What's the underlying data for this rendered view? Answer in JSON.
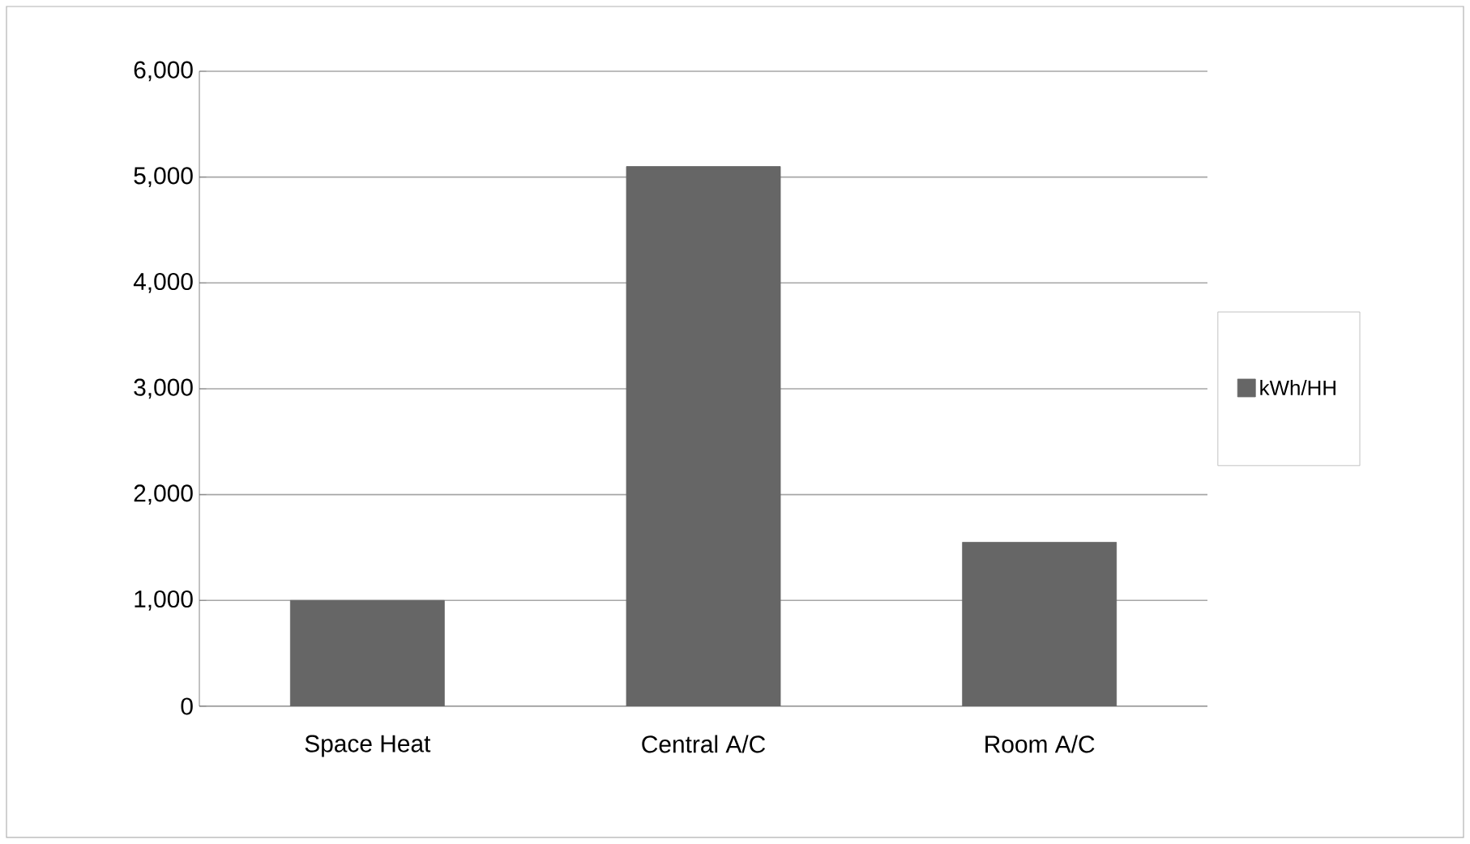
{
  "chart_data": {
    "type": "bar",
    "categories": [
      "Space Heat",
      "Central A/C",
      "Room A/C"
    ],
    "series": [
      {
        "name": "kWh/HH",
        "color": "#666666",
        "values": [
          1000,
          5100,
          1550
        ]
      }
    ],
    "ylim": [
      0,
      6000
    ],
    "yticks": [
      {
        "value": 0,
        "label": "0"
      },
      {
        "value": 1000,
        "label": "1,000"
      },
      {
        "value": 2000,
        "label": "2,000"
      },
      {
        "value": 3000,
        "label": "3,000"
      },
      {
        "value": 4000,
        "label": "4,000"
      },
      {
        "value": 5000,
        "label": "5,000"
      },
      {
        "value": 6000,
        "label": "6,000"
      }
    ],
    "grid": "y",
    "legend": "right"
  }
}
